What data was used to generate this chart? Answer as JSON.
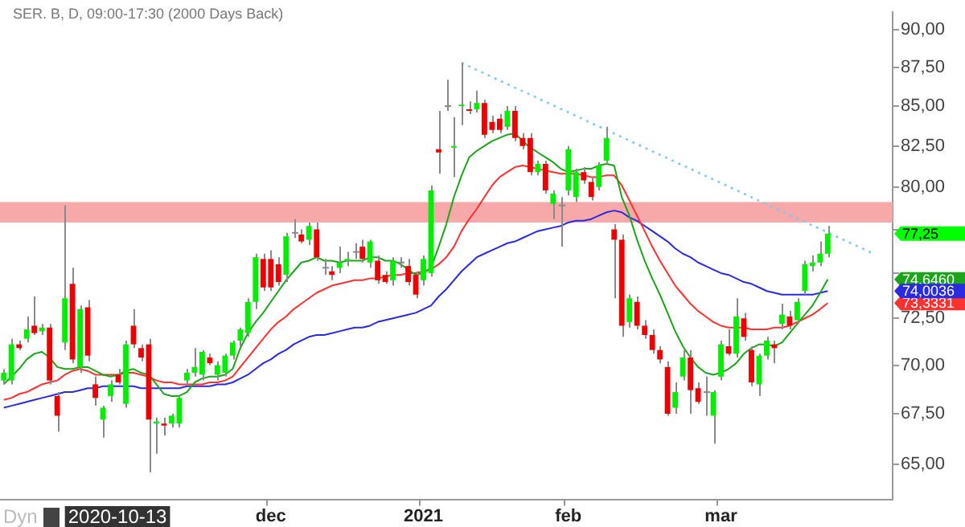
{
  "chart_data": {
    "type": "candlestick",
    "title": "SER. B, D, 09:00-17:30 (2000 Days Back)",
    "categories": [
      null,
      null,
      null,
      null,
      null,
      null,
      null,
      null,
      null,
      null,
      null,
      null,
      null,
      null,
      null,
      null,
      null,
      null,
      null,
      null,
      null,
      null,
      null,
      null,
      null,
      null,
      null,
      null,
      null,
      null,
      null,
      null,
      null,
      null,
      null,
      "dec",
      null,
      null,
      null,
      null,
      null,
      null,
      null,
      null,
      null,
      null,
      null,
      null,
      null,
      null,
      null,
      null,
      null,
      null,
      null,
      "2021",
      null,
      null,
      null,
      null,
      null,
      null,
      null,
      null,
      null,
      null,
      null,
      null,
      null,
      null,
      null,
      null,
      null,
      null,
      "feb",
      null,
      null,
      null,
      null,
      null,
      null,
      null,
      null,
      null,
      null,
      null,
      null,
      null,
      null,
      null,
      null,
      null,
      null,
      null,
      "mar",
      null,
      null,
      null,
      null,
      null,
      null,
      null,
      null,
      null,
      null,
      null,
      null,
      null,
      null,
      null,
      null,
      null,
      null,
      null,
      null,
      null,
      null
    ],
    "ohlc": [
      [
        69.2,
        69.8,
        69.0,
        69.6
      ],
      [
        69.2,
        71.4,
        69.0,
        71.1
      ],
      [
        71.1,
        71.3,
        70.8,
        70.9
      ],
      [
        71.4,
        72.6,
        71.2,
        71.9
      ],
      [
        72.1,
        73.7,
        71.6,
        71.7
      ],
      [
        71.8,
        72.2,
        71.6,
        72.0
      ],
      [
        72.0,
        72.2,
        69.0,
        69.2
      ],
      [
        68.4,
        68.6,
        66.6,
        67.4
      ],
      [
        71.2,
        78.9,
        70.8,
        73.6
      ],
      [
        74.4,
        75.3,
        70.1,
        70.3
      ],
      [
        69.9,
        73.2,
        69.6,
        73.0
      ],
      [
        73.1,
        73.5,
        70.2,
        70.5
      ],
      [
        69.0,
        69.4,
        67.9,
        68.3
      ],
      [
        67.2,
        67.9,
        66.3,
        67.8
      ],
      [
        68.4,
        69.2,
        68.1,
        69.0
      ],
      [
        69.5,
        69.8,
        69.0,
        69.1
      ],
      [
        68.0,
        71.3,
        67.8,
        71.1
      ],
      [
        72.1,
        73.0,
        70.9,
        71.1
      ],
      [
        70.9,
        71.1,
        70.2,
        70.4
      ],
      [
        71.1,
        71.4,
        64.6,
        67.2
      ],
      [
        67.0,
        67.3,
        65.5,
        67.1
      ],
      [
        67.0,
        67.3,
        66.4,
        66.9
      ],
      [
        67.0,
        67.5,
        66.8,
        67.4
      ],
      [
        67.0,
        68.4,
        66.8,
        68.3
      ],
      [
        69.2,
        69.8,
        69.0,
        69.6
      ],
      [
        69.6,
        70.9,
        69.4,
        69.9
      ],
      [
        69.5,
        70.8,
        69.2,
        70.7
      ],
      [
        70.4,
        70.6,
        70.0,
        70.1
      ],
      [
        69.5,
        70.2,
        69.2,
        70.0
      ],
      [
        69.6,
        70.6,
        69.4,
        70.5
      ],
      [
        70.5,
        71.3,
        70.3,
        71.2
      ],
      [
        71.3,
        72.0,
        71.0,
        71.9
      ],
      [
        71.7,
        73.6,
        71.5,
        73.4
      ],
      [
        73.4,
        76.1,
        73.0,
        75.9
      ],
      [
        75.8,
        76.1,
        74.0,
        74.2
      ],
      [
        75.8,
        76.3,
        74.0,
        74.2
      ],
      [
        75.5,
        75.9,
        74.3,
        74.5
      ],
      [
        74.9,
        77.3,
        74.5,
        77.1
      ],
      [
        77.3,
        78.1,
        77.0,
        77.3
      ],
      [
        77.2,
        77.5,
        76.7,
        76.8
      ],
      [
        76.9,
        77.9,
        76.6,
        77.7
      ],
      [
        77.5,
        77.9,
        75.7,
        75.9
      ],
      [
        75.3,
        75.8,
        74.9,
        75.3
      ],
      [
        75.1,
        75.4,
        74.6,
        74.9
      ],
      [
        75.3,
        76.5,
        75.0,
        75.6
      ],
      [
        75.7,
        76.2,
        75.4,
        75.8
      ],
      [
        76.2,
        76.7,
        75.8,
        76.2
      ],
      [
        76.5,
        76.9,
        75.6,
        75.8
      ],
      [
        75.6,
        76.9,
        75.3,
        76.8
      ],
      [
        75.7,
        76.0,
        74.4,
        74.6
      ],
      [
        74.9,
        75.1,
        74.4,
        74.5
      ],
      [
        74.6,
        75.9,
        74.3,
        75.7
      ],
      [
        75.6,
        75.9,
        75.3,
        75.6
      ],
      [
        75.4,
        75.8,
        74.3,
        74.5
      ],
      [
        74.9,
        75.1,
        73.6,
        73.8
      ],
      [
        74.6,
        76.0,
        74.3,
        75.8
      ],
      [
        75.0,
        80.1,
        74.8,
        79.8
      ],
      [
        82.3,
        84.7,
        80.8,
        82.1
      ],
      [
        85.0,
        86.7,
        84.7,
        85.0
      ],
      [
        82.4,
        84.3,
        80.6,
        82.5
      ],
      [
        85.0,
        87.8,
        83.8,
        85.1
      ],
      [
        84.8,
        85.3,
        84.5,
        84.7
      ],
      [
        84.8,
        86.0,
        84.6,
        85.2
      ],
      [
        85.2,
        85.4,
        83.0,
        83.2
      ],
      [
        84.0,
        84.4,
        83.3,
        83.5
      ],
      [
        84.2,
        84.5,
        83.3,
        83.5
      ],
      [
        83.7,
        85.0,
        83.5,
        84.7
      ],
      [
        84.7,
        85.0,
        82.8,
        83.0
      ],
      [
        83.0,
        83.3,
        82.3,
        82.5
      ],
      [
        83.0,
        83.3,
        80.7,
        80.9
      ],
      [
        80.9,
        81.6,
        80.7,
        81.4
      ],
      [
        81.4,
        81.6,
        79.6,
        79.8
      ],
      [
        79.0,
        79.8,
        78.1,
        79.6
      ],
      [
        78.9,
        79.4,
        76.5,
        78.9
      ],
      [
        79.8,
        82.5,
        79.5,
        82.3
      ],
      [
        79.4,
        81.1,
        79.1,
        80.9
      ],
      [
        80.9,
        81.2,
        80.2,
        80.4
      ],
      [
        80.3,
        80.6,
        79.2,
        79.4
      ],
      [
        80.0,
        81.5,
        79.8,
        81.3
      ],
      [
        81.6,
        83.7,
        81.4,
        83.0
      ],
      [
        77.5,
        77.8,
        73.6,
        76.9
      ],
      [
        76.9,
        77.2,
        71.5,
        72.1
      ],
      [
        72.3,
        73.8,
        72.0,
        73.6
      ],
      [
        73.4,
        73.7,
        71.9,
        72.1
      ],
      [
        72.1,
        72.4,
        71.4,
        71.6
      ],
      [
        71.6,
        71.9,
        70.6,
        70.8
      ],
      [
        70.8,
        71.0,
        70.1,
        70.3
      ],
      [
        69.9,
        70.2,
        67.4,
        67.5
      ],
      [
        67.8,
        69.1,
        67.5,
        68.6
      ],
      [
        69.4,
        70.8,
        69.2,
        70.4
      ],
      [
        70.4,
        70.8,
        67.5,
        68.7
      ],
      [
        68.8,
        69.1,
        68.0,
        68.1
      ],
      [
        68.6,
        69.4,
        67.4,
        68.6
      ],
      [
        67.4,
        68.7,
        66.0,
        68.6
      ],
      [
        69.4,
        71.3,
        69.2,
        71.1
      ],
      [
        71.0,
        71.9,
        70.5,
        70.6
      ],
      [
        70.6,
        73.6,
        70.4,
        72.6
      ],
      [
        72.5,
        72.8,
        71.3,
        71.5
      ],
      [
        70.8,
        71.0,
        68.9,
        69.1
      ],
      [
        69.0,
        70.6,
        68.4,
        70.5
      ],
      [
        70.5,
        71.5,
        70.3,
        71.3
      ],
      [
        71.1,
        71.3,
        70.1,
        70.9
      ],
      [
        72.2,
        73.3,
        71.9,
        72.7
      ],
      [
        72.6,
        72.9,
        71.9,
        72.1
      ],
      [
        72.4,
        73.6,
        72.2,
        73.4
      ],
      [
        74.0,
        75.7,
        73.8,
        75.5
      ],
      [
        75.4,
        76.0,
        75.1,
        75.6
      ],
      [
        75.6,
        76.8,
        75.4,
        76.1
      ],
      [
        76.1,
        77.7,
        75.9,
        77.25
      ],
      null,
      null,
      null,
      null,
      null,
      null,
      null,
      null
    ],
    "series": [
      {
        "type": "line",
        "color": "#1aa51a",
        "value_labels": [
          null,
          null,
          null,
          null,
          null,
          null,
          null,
          null,
          null,
          null,
          null,
          null,
          null,
          null,
          null,
          null,
          null,
          null,
          null,
          null,
          null,
          null,
          null,
          null,
          null,
          null,
          null,
          null,
          null,
          null,
          null,
          null,
          null,
          null,
          null,
          null,
          null,
          null,
          null,
          null,
          null,
          null,
          null,
          null,
          null,
          null,
          null,
          null,
          null,
          null,
          null,
          null,
          null,
          null,
          null,
          null,
          null,
          null,
          null,
          null,
          null,
          null,
          null,
          null,
          null,
          null,
          null,
          null,
          null,
          null,
          null,
          null,
          null,
          null,
          null,
          null,
          null,
          null,
          null,
          null,
          null,
          null,
          null,
          null,
          null,
          null,
          null,
          null,
          null,
          null,
          null,
          null,
          null,
          null,
          null,
          null,
          null,
          null,
          null,
          null,
          null,
          null,
          null,
          null,
          null,
          null,
          null,
          null,
          null,
          null,
          null,
          null,
          null,
          null,
          null,
          null,
          null
        ],
        "values": [
          69.0,
          69.4,
          69.8,
          70.3,
          70.6,
          70.7,
          70.4,
          69.9,
          69.8,
          69.8,
          69.9,
          69.9,
          69.7,
          69.5,
          69.4,
          69.5,
          69.7,
          69.8,
          69.6,
          69.5,
          69.0,
          68.5,
          68.4,
          68.4,
          68.6,
          69.1,
          69.3,
          69.4,
          69.4,
          69.5,
          69.8,
          70.9,
          71.7,
          72.3,
          72.8,
          73.4,
          74.0,
          74.6,
          75.1,
          75.6,
          75.7,
          75.9,
          75.7,
          75.7,
          75.6,
          75.7,
          75.7,
          75.7,
          75.9,
          75.9,
          75.7,
          75.7,
          75.5,
          75.2,
          74.9,
          75.0,
          75.3,
          76.5,
          77.8,
          79.4,
          80.7,
          81.8,
          82.2,
          82.5,
          82.8,
          83.0,
          83.2,
          83.3,
          82.8,
          82.4,
          82.1,
          81.8,
          81.5,
          81.1,
          80.9,
          81.0,
          81.1,
          81.1,
          81.3,
          81.4,
          81.3,
          79.4,
          78.3,
          76.9,
          75.7,
          74.7,
          73.8,
          72.8,
          71.8,
          71.0,
          70.4,
          69.9,
          69.6,
          69.5,
          69.6,
          69.8,
          70.1,
          70.6,
          70.9,
          71.1,
          71.1,
          71.0,
          71.2,
          71.7,
          72.2,
          72.7,
          73.2,
          73.9,
          74.646004,
          null,
          null,
          null,
          null,
          null,
          null,
          null,
          null
        ]
      },
      {
        "type": "line",
        "color": "#ff3030",
        "value_labels": [
          null,
          null,
          null,
          null,
          null,
          null,
          null,
          null,
          null,
          null,
          null,
          null,
          null,
          null,
          null,
          null,
          null,
          null,
          null,
          null,
          null,
          null,
          null,
          null,
          null,
          null,
          null,
          null,
          null,
          null,
          null,
          null,
          null,
          null,
          null,
          null,
          null,
          null,
          null,
          null,
          null,
          null,
          null,
          null,
          null,
          null,
          null,
          null,
          null,
          null,
          null,
          null,
          null,
          null,
          null,
          null,
          null,
          null,
          null,
          null,
          null,
          null,
          null,
          null,
          null,
          null,
          null,
          null,
          null,
          null,
          null,
          null,
          null,
          null,
          null,
          null,
          null,
          null,
          null,
          null,
          null,
          null,
          null,
          null,
          null,
          null,
          null,
          null,
          null,
          null,
          null,
          null,
          null,
          null,
          null,
          null,
          null,
          null,
          null,
          null,
          null,
          null,
          null,
          null,
          null,
          null,
          null,
          null,
          null,
          null,
          null,
          null,
          null,
          null,
          null,
          null,
          null
        ],
        "values": [
          68.2,
          68.3,
          68.5,
          68.6,
          68.8,
          69.0,
          69.1,
          69.2,
          69.5,
          69.7,
          69.8,
          69.7,
          69.5,
          69.5,
          69.5,
          69.5,
          69.6,
          69.6,
          69.5,
          69.4,
          69.2,
          69.1,
          69.1,
          69.0,
          69.0,
          69.0,
          69.0,
          69.1,
          69.1,
          69.2,
          69.4,
          69.9,
          70.4,
          70.9,
          71.4,
          71.9,
          72.3,
          72.6,
          73.0,
          73.3,
          73.6,
          73.9,
          74.1,
          74.3,
          74.4,
          74.5,
          74.6,
          74.6,
          74.7,
          74.7,
          74.8,
          74.9,
          74.9,
          75.0,
          75.0,
          75.1,
          75.2,
          75.5,
          75.9,
          76.5,
          77.4,
          78.1,
          78.7,
          79.4,
          80.1,
          80.6,
          80.9,
          81.2,
          81.3,
          81.2,
          81.1,
          81.0,
          80.9,
          80.8,
          80.8,
          80.8,
          80.7,
          80.6,
          80.6,
          80.7,
          80.7,
          80.1,
          79.2,
          78.3,
          77.4,
          76.5,
          75.7,
          75.0,
          74.3,
          73.8,
          73.3,
          72.9,
          72.6,
          72.3,
          72.1,
          72.0,
          72.0,
          72.0,
          71.9,
          71.9,
          71.9,
          72.0,
          72.0,
          72.1,
          72.3,
          72.5,
          72.7,
          73.0,
          73.333114,
          null,
          null,
          null,
          null,
          null,
          null,
          null,
          null
        ]
      },
      {
        "type": "line",
        "color": "#2a2ae0",
        "value_labels": [
          null,
          null,
          null,
          null,
          null,
          null,
          null,
          null,
          null,
          null,
          null,
          null,
          null,
          null,
          null,
          null,
          null,
          null,
          null,
          null,
          null,
          null,
          null,
          null,
          null,
          null,
          null,
          null,
          null,
          null,
          null,
          null,
          null,
          null,
          null,
          null,
          null,
          null,
          null,
          null,
          null,
          null,
          null,
          null,
          null,
          null,
          null,
          null,
          null,
          null,
          null,
          null,
          null,
          null,
          null,
          null,
          null,
          null,
          null,
          null,
          null,
          null,
          null,
          null,
          null,
          null,
          null,
          null,
          null,
          null,
          null,
          null,
          null,
          null,
          null,
          null,
          null,
          null,
          null,
          null,
          null,
          null,
          null,
          null,
          null,
          null,
          null,
          null,
          null,
          null,
          null,
          null,
          null,
          null,
          null,
          null,
          null,
          null,
          null,
          null,
          null,
          null,
          null,
          null,
          null,
          null,
          null,
          null,
          null,
          null,
          null,
          null,
          null,
          null,
          null,
          null,
          null
        ],
        "values": [
          67.8,
          67.9,
          68.0,
          68.1,
          68.2,
          68.3,
          68.4,
          68.5,
          68.6,
          68.6,
          68.7,
          68.8,
          68.8,
          68.9,
          68.9,
          68.9,
          68.9,
          68.9,
          68.8,
          68.8,
          68.8,
          68.8,
          68.8,
          68.8,
          68.9,
          68.9,
          68.9,
          68.9,
          69.0,
          69.0,
          69.1,
          69.3,
          69.5,
          69.8,
          70.1,
          70.3,
          70.6,
          70.8,
          71.1,
          71.3,
          71.5,
          71.6,
          71.6,
          71.7,
          71.8,
          71.9,
          72.0,
          72.0,
          72.1,
          72.3,
          72.4,
          72.5,
          72.6,
          72.7,
          72.8,
          73.0,
          73.2,
          73.7,
          74.1,
          74.6,
          75.1,
          75.5,
          75.9,
          76.1,
          76.3,
          76.5,
          76.7,
          76.8,
          77.0,
          77.2,
          77.4,
          77.5,
          77.6,
          77.7,
          77.9,
          78.0,
          78.0,
          78.1,
          78.3,
          78.5,
          78.6,
          78.5,
          78.2,
          78.0,
          77.7,
          77.4,
          77.1,
          76.8,
          76.4,
          76.1,
          75.9,
          75.6,
          75.4,
          75.2,
          75.0,
          74.9,
          74.7,
          74.5,
          74.4,
          74.2,
          74.0,
          73.9,
          73.8,
          73.8,
          73.8,
          73.8,
          73.8,
          73.9,
          74.003635,
          null,
          null,
          null,
          null,
          null,
          null,
          null,
          null
        ]
      },
      {
        "type": "line",
        "color": "#7fc8f0",
        "line_style": "dotted",
        "values": [
          null,
          null,
          null,
          null,
          null,
          null,
          null,
          null,
          null,
          null,
          null,
          null,
          null,
          null,
          null,
          null,
          null,
          null,
          null,
          null,
          null,
          null,
          null,
          null,
          null,
          null,
          null,
          null,
          null,
          null,
          null,
          null,
          null,
          null,
          null,
          null,
          null,
          null,
          null,
          null,
          null,
          null,
          null,
          null,
          null,
          null,
          null,
          null,
          null,
          null,
          null,
          null,
          null,
          null,
          null,
          null,
          null,
          null,
          null,
          null,
          87.8,
          null,
          null,
          null,
          null,
          null,
          null,
          null,
          null,
          null,
          null,
          null,
          null,
          null,
          null,
          null,
          null,
          null,
          null,
          null,
          null,
          null,
          null,
          null,
          null,
          null,
          null,
          null,
          null,
          null,
          null,
          null,
          null,
          null,
          null,
          null,
          null,
          null,
          null,
          null,
          null,
          null,
          null,
          null,
          null,
          null,
          null,
          null,
          null,
          null,
          null,
          null,
          null,
          null,
          76.1,
          null,
          null
        ]
      }
    ],
    "ylim": [
      63.3,
      91.2
    ],
    "yticks": [
      {
        "value": 65,
        "label": "65,00"
      },
      {
        "value": 67.5,
        "label": "67,50"
      },
      {
        "value": 70,
        "label": "70,00"
      },
      {
        "value": 72.5,
        "label": "72,50"
      },
      {
        "value": 75,
        "label": null
      },
      {
        "value": 77.5,
        "label": null
      },
      {
        "value": 80,
        "label": "80,00"
      },
      {
        "value": 82.5,
        "label": "82,50"
      },
      {
        "value": 85,
        "label": "85,00"
      },
      {
        "value": 87.5,
        "label": "87,50"
      },
      {
        "value": 90,
        "label": "90,00"
      }
    ],
    "log": true,
    "bands": [
      {
        "axis": "y",
        "from": 77.9,
        "to": 79.1,
        "color": "#f7a8a8"
      }
    ],
    "annotations": [
      "77,25",
      "74,6460",
      "73,3331",
      "74,0036",
      "Dyn",
      "2020-10-13"
    ]
  }
}
